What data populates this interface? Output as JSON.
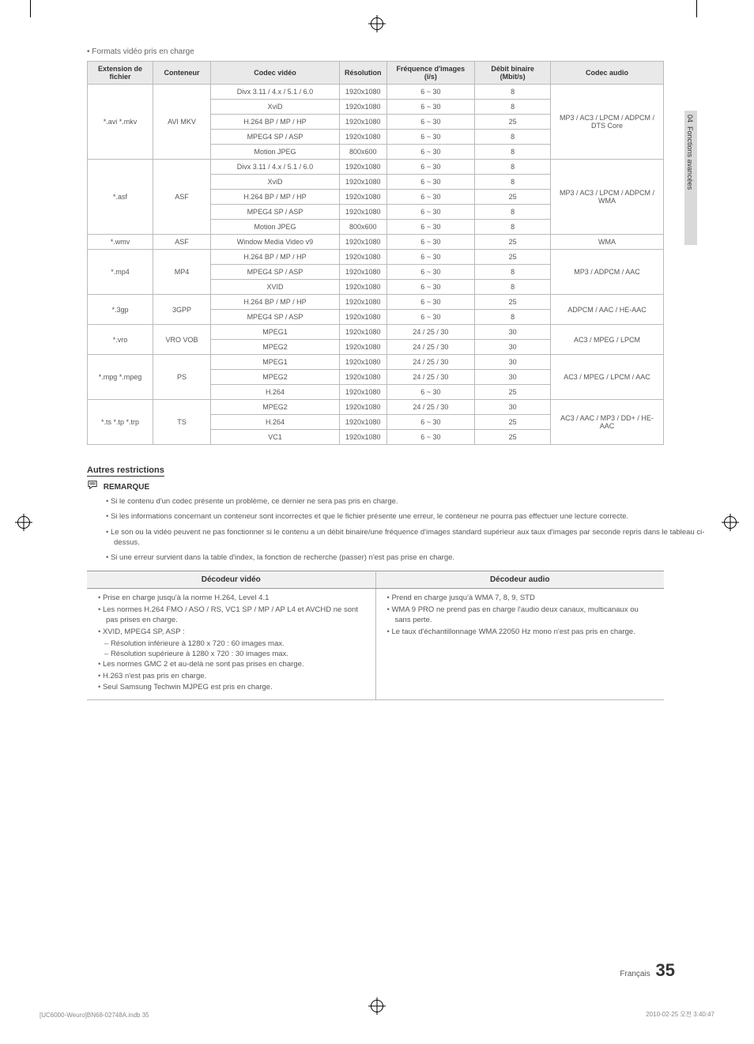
{
  "side_tab": {
    "number": "04",
    "label": "Fonctions avancées"
  },
  "section_title": "Formats vidéo pris en charge",
  "codec_table": {
    "headers": [
      "Extension de fichier",
      "Conteneur",
      "Codec vidéo",
      "Résolution",
      "Fréquence d'images (i/s)",
      "Débit binaire (Mbit/s)",
      "Codec audio"
    ],
    "groups": [
      {
        "ext": "*.avi *.mkv",
        "cont": "AVI MKV",
        "audio": "MP3 / AC3 / LPCM / ADPCM / DTS Core",
        "rows": [
          {
            "codec": "Divx 3.11 / 4.x / 5.1 / 6.0",
            "res": "1920x1080",
            "fps": "6 ~ 30",
            "rate": "8"
          },
          {
            "codec": "XviD",
            "res": "1920x1080",
            "fps": "6 ~ 30",
            "rate": "8"
          },
          {
            "codec": "H.264 BP / MP / HP",
            "res": "1920x1080",
            "fps": "6 ~ 30",
            "rate": "25"
          },
          {
            "codec": "MPEG4 SP / ASP",
            "res": "1920x1080",
            "fps": "6 ~ 30",
            "rate": "8"
          },
          {
            "codec": "Motion JPEG",
            "res": "800x600",
            "fps": "6 ~ 30",
            "rate": "8"
          }
        ]
      },
      {
        "ext": "*.asf",
        "cont": "ASF",
        "audio": "MP3 / AC3 / LPCM / ADPCM / WMA",
        "rows": [
          {
            "codec": "Divx 3.11 / 4.x / 5.1 / 6.0",
            "res": "1920x1080",
            "fps": "6 ~ 30",
            "rate": "8"
          },
          {
            "codec": "XviD",
            "res": "1920x1080",
            "fps": "6 ~ 30",
            "rate": "8"
          },
          {
            "codec": "H.264 BP / MP / HP",
            "res": "1920x1080",
            "fps": "6 ~ 30",
            "rate": "25"
          },
          {
            "codec": "MPEG4 SP / ASP",
            "res": "1920x1080",
            "fps": "6 ~ 30",
            "rate": "8"
          },
          {
            "codec": "Motion JPEG",
            "res": "800x600",
            "fps": "6 ~ 30",
            "rate": "8"
          }
        ]
      },
      {
        "ext": "*.wmv",
        "cont": "ASF",
        "audio": "WMA",
        "rows": [
          {
            "codec": "Window Media Video v9",
            "res": "1920x1080",
            "fps": "6 ~ 30",
            "rate": "25"
          }
        ]
      },
      {
        "ext": "*.mp4",
        "cont": "MP4",
        "audio": "MP3 / ADPCM / AAC",
        "rows": [
          {
            "codec": "H.264 BP / MP / HP",
            "res": "1920x1080",
            "fps": "6 ~ 30",
            "rate": "25"
          },
          {
            "codec": "MPEG4 SP / ASP",
            "res": "1920x1080",
            "fps": "6 ~ 30",
            "rate": "8"
          },
          {
            "codec": "XVID",
            "res": "1920x1080",
            "fps": "6 ~ 30",
            "rate": "8"
          }
        ]
      },
      {
        "ext": "*.3gp",
        "cont": "3GPP",
        "audio": "ADPCM / AAC / HE-AAC",
        "rows": [
          {
            "codec": "H.264 BP / MP / HP",
            "res": "1920x1080",
            "fps": "6 ~ 30",
            "rate": "25"
          },
          {
            "codec": "MPEG4 SP / ASP",
            "res": "1920x1080",
            "fps": "6 ~ 30",
            "rate": "8"
          }
        ]
      },
      {
        "ext": "*.vro",
        "cont": "VRO VOB",
        "audio": "AC3 / MPEG / LPCM",
        "rows": [
          {
            "codec": "MPEG1",
            "res": "1920x1080",
            "fps": "24 / 25 / 30",
            "rate": "30"
          },
          {
            "codec": "MPEG2",
            "res": "1920x1080",
            "fps": "24 / 25 / 30",
            "rate": "30"
          }
        ]
      },
      {
        "ext": "*.mpg *.mpeg",
        "cont": "PS",
        "audio": "AC3 / MPEG / LPCM / AAC",
        "rows": [
          {
            "codec": "MPEG1",
            "res": "1920x1080",
            "fps": "24 / 25 / 30",
            "rate": "30"
          },
          {
            "codec": "MPEG2",
            "res": "1920x1080",
            "fps": "24 / 25 / 30",
            "rate": "30"
          },
          {
            "codec": "H.264",
            "res": "1920x1080",
            "fps": "6 ~ 30",
            "rate": "25"
          }
        ]
      },
      {
        "ext": "*.ts *.tp *.trp",
        "cont": "TS",
        "audio": "AC3 / AAC / MP3 / DD+ / HE-AAC",
        "rows": [
          {
            "codec": "MPEG2",
            "res": "1920x1080",
            "fps": "24 / 25 / 30",
            "rate": "30"
          },
          {
            "codec": "H.264",
            "res": "1920x1080",
            "fps": "6 ~ 30",
            "rate": "25"
          },
          {
            "codec": "VC1",
            "res": "1920x1080",
            "fps": "6 ~ 30",
            "rate": "25"
          }
        ]
      }
    ]
  },
  "restrictions": {
    "heading": "Autres restrictions",
    "remark_label": "REMARQUE",
    "notes": [
      "Si le contenu d'un codec présente un problème, ce dernier ne sera pas pris en charge.",
      "Si les informations concernant un conteneur sont incorrectes et que le fichier présente une erreur, le conteneur ne pourra pas effectuer une lecture correcte.",
      "Le son ou la vidéo peuvent ne pas fonctionner si le contenu a un débit binaire/une fréquence d'images standard supérieur aux taux d'images par seconde repris dans le tableau ci-dessus.",
      "Si une erreur survient dans la table d'index, la fonction de recherche (passer) n'est pas prise en charge."
    ]
  },
  "decoder_table": {
    "headers": [
      "Décodeur vidéo",
      "Décodeur audio"
    ],
    "video": {
      "items": [
        "Prise en charge jusqu'à la norme H.264, Level 4.1",
        "Les normes H.264 FMO / ASO / RS, VC1 SP / MP / AP L4 et AVCHD ne sont pas prises en charge.",
        "XVID, MPEG4 SP, ASP :"
      ],
      "sub": [
        "Résolution inférieure à 1280 x 720 : 60 images max.",
        "Résolution supérieure à 1280 x 720 : 30 images max."
      ],
      "items2": [
        "Les normes GMC 2 et au-delà ne sont pas prises en charge.",
        "H.263 n'est pas pris en charge.",
        "Seul Samsung Techwin MJPEG est pris en charge."
      ]
    },
    "audio": {
      "items": [
        "Prend en charge jusqu'à WMA 7, 8, 9, STD",
        "WMA 9 PRO ne prend pas en charge l'audio deux canaux, multicanaux ou sans perte.",
        "Le taux d'échantillonnage WMA 22050 Hz mono n'est pas pris en charge."
      ]
    }
  },
  "page_number": {
    "lang": "Français",
    "num": "35"
  },
  "footer": {
    "left": "[UC6000-Weuro]BN68-02748A.indb   35",
    "right": "2010-02-25   오전 3:40:47"
  },
  "colors": {
    "header_bg": "#e9e9e9",
    "border": "#bbbbbb",
    "text": "#555555",
    "tab_bg": "#d9d9d9"
  }
}
